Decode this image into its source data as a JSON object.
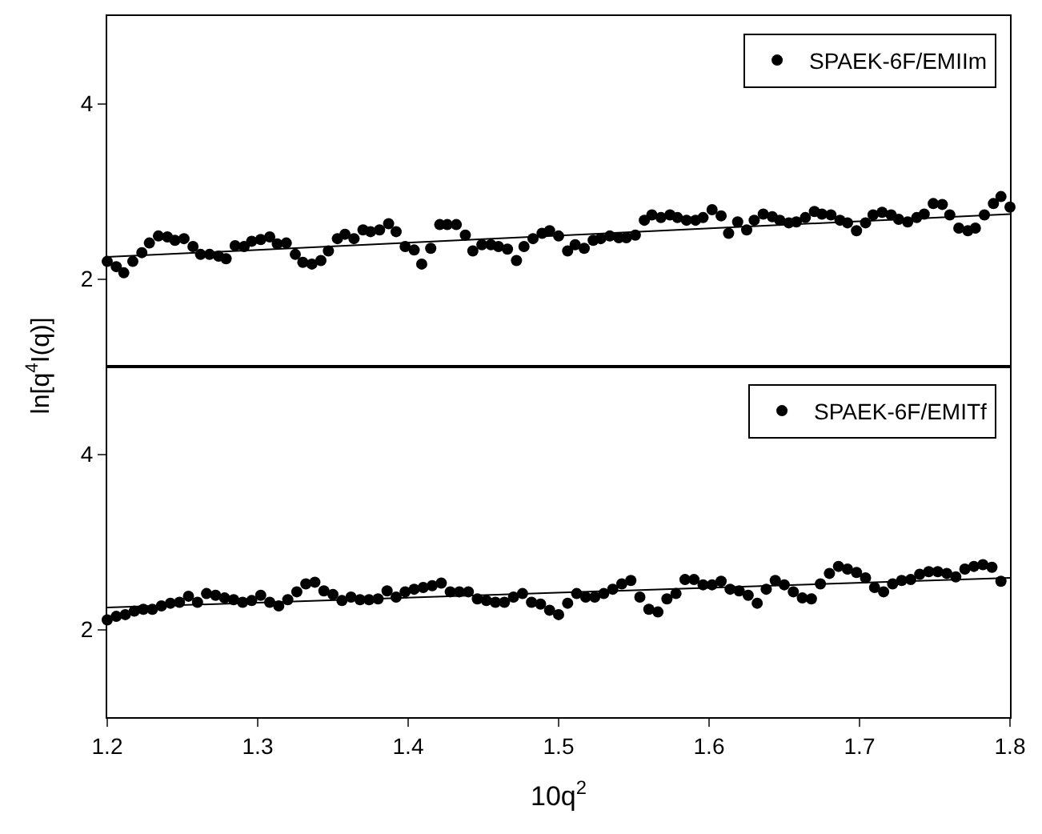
{
  "chart_data": [
    {
      "type": "scatter",
      "ylabel": "ln[q$^{4}$I(q)]",
      "xlim": [
        1.2,
        1.8
      ],
      "xticks": [
        1.2,
        1.3,
        1.4,
        1.5,
        1.6,
        1.7,
        1.8
      ],
      "ylim": [
        1,
        5
      ],
      "yticks": [
        2,
        4
      ],
      "tick_labels": "y",
      "grid": false,
      "legend": "top right",
      "marker": "circle",
      "series": [
        {
          "name": "SPAEK-6F/EMIIm",
          "color": "#000000",
          "x": [
            1.2,
            1.206,
            1.211,
            1.217,
            1.223,
            1.228,
            1.234,
            1.24,
            1.245,
            1.251,
            1.257,
            1.262,
            1.268,
            1.274,
            1.279,
            1.285,
            1.291,
            1.296,
            1.302,
            1.308,
            1.313,
            1.319,
            1.325,
            1.33,
            1.336,
            1.342,
            1.347,
            1.353,
            1.358,
            1.364,
            1.37,
            1.375,
            1.381,
            1.387,
            1.392,
            1.398,
            1.404,
            1.409,
            1.415,
            1.421,
            1.426,
            1.432,
            1.438,
            1.443,
            1.449,
            1.455,
            1.46,
            1.466,
            1.472,
            1.477,
            1.483,
            1.489,
            1.494,
            1.5,
            1.506,
            1.511,
            1.517,
            1.523,
            1.528,
            1.534,
            1.54,
            1.545,
            1.551,
            1.557,
            1.562,
            1.568,
            1.574,
            1.579,
            1.585,
            1.591,
            1.596,
            1.602,
            1.608,
            1.613,
            1.619,
            1.625,
            1.63,
            1.636,
            1.642,
            1.647,
            1.653,
            1.658,
            1.664,
            1.67,
            1.675,
            1.681,
            1.687,
            1.692,
            1.698,
            1.704,
            1.709,
            1.715,
            1.721,
            1.726,
            1.732,
            1.738,
            1.743,
            1.749,
            1.755,
            1.76,
            1.766,
            1.772,
            1.777,
            1.783,
            1.789,
            1.794,
            1.8
          ],
          "values": [
            2.2,
            2.14,
            2.07,
            2.2,
            2.3,
            2.41,
            2.49,
            2.48,
            2.44,
            2.46,
            2.37,
            2.28,
            2.28,
            2.26,
            2.23,
            2.38,
            2.37,
            2.43,
            2.45,
            2.48,
            2.4,
            2.41,
            2.28,
            2.19,
            2.17,
            2.21,
            2.32,
            2.46,
            2.51,
            2.46,
            2.56,
            2.54,
            2.56,
            2.63,
            2.54,
            2.37,
            2.33,
            2.17,
            2.35,
            2.62,
            2.62,
            2.62,
            2.5,
            2.32,
            2.39,
            2.39,
            2.37,
            2.34,
            2.21,
            2.37,
            2.46,
            2.52,
            2.55,
            2.49,
            2.32,
            2.39,
            2.35,
            2.44,
            2.46,
            2.49,
            2.47,
            2.47,
            2.5,
            2.67,
            2.73,
            2.7,
            2.73,
            2.7,
            2.67,
            2.67,
            2.7,
            2.79,
            2.72,
            2.52,
            2.65,
            2.56,
            2.67,
            2.74,
            2.71,
            2.67,
            2.64,
            2.65,
            2.7,
            2.77,
            2.74,
            2.73,
            2.67,
            2.64,
            2.55,
            2.64,
            2.73,
            2.76,
            2.73,
            2.68,
            2.65,
            2.7,
            2.74,
            2.86,
            2.85,
            2.73,
            2.58,
            2.55,
            2.58,
            2.73,
            2.86,
            2.94,
            2.82
          ]
        },
        {
          "type": "line",
          "color": "#000000",
          "marker": "none",
          "x": [
            1.2,
            1.8
          ],
          "values": [
            2.25,
            2.74
          ]
        }
      ]
    },
    {
      "type": "scatter",
      "xlabel": "10q$^{2}$",
      "xlim": [
        1.2,
        1.8
      ],
      "xticks": [
        1.2,
        1.3,
        1.4,
        1.5,
        1.6,
        1.7,
        1.8
      ],
      "ylim": [
        1,
        5
      ],
      "yticks": [
        2,
        4
      ],
      "grid": false,
      "legend": "top right",
      "marker": "circle",
      "series": [
        {
          "name": "SPAEK-6F/EMITf",
          "color": "#000000",
          "x": [
            1.2,
            1.206,
            1.212,
            1.218,
            1.224,
            1.23,
            1.236,
            1.242,
            1.248,
            1.254,
            1.26,
            1.266,
            1.272,
            1.278,
            1.284,
            1.29,
            1.296,
            1.302,
            1.308,
            1.314,
            1.32,
            1.326,
            1.332,
            1.338,
            1.344,
            1.35,
            1.356,
            1.362,
            1.368,
            1.374,
            1.38,
            1.386,
            1.392,
            1.398,
            1.404,
            1.41,
            1.416,
            1.422,
            1.428,
            1.434,
            1.44,
            1.446,
            1.452,
            1.458,
            1.464,
            1.47,
            1.476,
            1.482,
            1.488,
            1.494,
            1.5,
            1.506,
            1.512,
            1.518,
            1.524,
            1.53,
            1.536,
            1.542,
            1.548,
            1.554,
            1.56,
            1.566,
            1.572,
            1.578,
            1.584,
            1.59,
            1.596,
            1.602,
            1.608,
            1.614,
            1.62,
            1.626,
            1.632,
            1.638,
            1.644,
            1.65,
            1.656,
            1.662,
            1.668,
            1.674,
            1.68,
            1.686,
            1.692,
            1.698,
            1.704,
            1.71,
            1.716,
            1.722,
            1.728,
            1.734,
            1.74,
            1.746,
            1.752,
            1.758,
            1.764,
            1.77,
            1.776,
            1.782,
            1.788,
            1.794
          ],
          "values": [
            2.11,
            2.15,
            2.17,
            2.21,
            2.23,
            2.23,
            2.27,
            2.3,
            2.31,
            2.38,
            2.31,
            2.41,
            2.39,
            2.36,
            2.34,
            2.31,
            2.33,
            2.39,
            2.31,
            2.27,
            2.34,
            2.43,
            2.52,
            2.54,
            2.44,
            2.4,
            2.33,
            2.37,
            2.34,
            2.34,
            2.35,
            2.44,
            2.37,
            2.43,
            2.46,
            2.48,
            2.5,
            2.53,
            2.43,
            2.43,
            2.43,
            2.35,
            2.33,
            2.31,
            2.31,
            2.37,
            2.41,
            2.31,
            2.29,
            2.22,
            2.17,
            2.3,
            2.41,
            2.37,
            2.37,
            2.41,
            2.46,
            2.52,
            2.56,
            2.37,
            2.23,
            2.2,
            2.35,
            2.41,
            2.57,
            2.57,
            2.51,
            2.51,
            2.55,
            2.46,
            2.44,
            2.39,
            2.3,
            2.46,
            2.56,
            2.51,
            2.43,
            2.36,
            2.35,
            2.52,
            2.64,
            2.72,
            2.69,
            2.65,
            2.59,
            2.48,
            2.43,
            2.52,
            2.56,
            2.57,
            2.63,
            2.66,
            2.66,
            2.64,
            2.6,
            2.69,
            2.72,
            2.74,
            2.71,
            2.55
          ]
        },
        {
          "type": "line",
          "color": "#000000",
          "marker": "none",
          "x": [
            1.2,
            1.8
          ],
          "values": [
            2.25,
            2.59
          ]
        }
      ]
    }
  ]
}
